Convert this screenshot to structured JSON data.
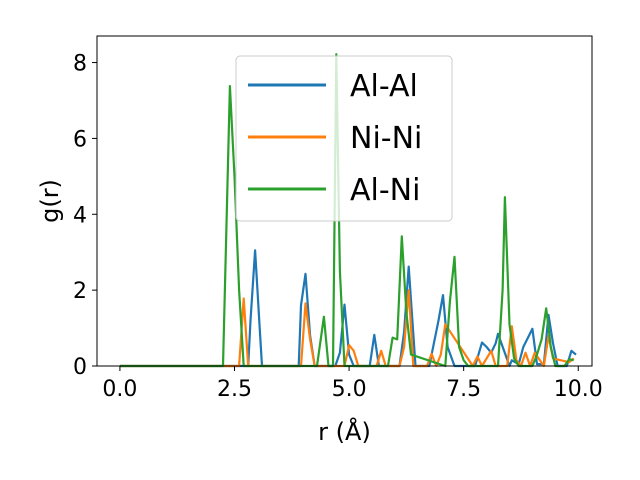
{
  "chart_data": {
    "type": "line",
    "xlabel": "r (Å)",
    "ylabel": "g(r)",
    "xlim": [
      -0.5,
      10.3
    ],
    "ylim": [
      0,
      8.7
    ],
    "xticks": [
      0.0,
      2.5,
      5.0,
      7.5,
      10.0
    ],
    "xtick_labels": [
      "0.0",
      "2.5",
      "5.0",
      "7.5",
      "10.0"
    ],
    "yticks": [
      0,
      2,
      4,
      6,
      8
    ],
    "ytick_labels": [
      "0",
      "2",
      "4",
      "6",
      "8"
    ],
    "grid": false,
    "legend_position": "upper-center",
    "series": [
      {
        "name": "Al-Al",
        "color": "#1f77b4",
        "x": [
          0.0,
          2.8,
          2.85,
          2.95,
          3.05,
          3.1,
          3.9,
          3.95,
          4.05,
          4.15,
          4.25,
          4.7,
          4.8,
          4.9,
          5.0,
          5.1,
          5.45,
          5.55,
          5.65,
          6.1,
          6.2,
          6.3,
          6.45,
          6.75,
          6.85,
          6.95,
          7.05,
          7.15,
          7.3,
          7.75,
          7.9,
          8.0,
          8.1,
          8.2,
          8.25,
          8.5,
          8.55,
          8.7,
          8.8,
          9.0,
          9.1,
          9.25,
          9.35,
          9.45,
          9.55,
          9.75,
          9.85,
          9.95
        ],
        "y": [
          0,
          0,
          1.2,
          3.05,
          1.0,
          0,
          0,
          1.6,
          2.43,
          0.8,
          0,
          0,
          0.35,
          1.62,
          0.3,
          0,
          0,
          0.82,
          0,
          0,
          0.9,
          2.62,
          0,
          0,
          0.6,
          1.2,
          1.87,
          0.5,
          0,
          0,
          0.62,
          0.5,
          0.35,
          0.6,
          0.85,
          0,
          0.15,
          0.05,
          0.5,
          0.98,
          0.05,
          0.05,
          1.35,
          0.6,
          0,
          0,
          0.4,
          0.3
        ]
      },
      {
        "name": "Ni-Ni",
        "color": "#ff7f0e",
        "x": [
          0.0,
          2.6,
          2.7,
          2.8,
          3.95,
          4.05,
          4.15,
          4.25,
          4.9,
          5.0,
          5.1,
          5.2,
          5.6,
          5.7,
          5.8,
          6.1,
          6.2,
          6.3,
          6.4,
          6.7,
          6.8,
          6.9,
          7.0,
          7.1,
          7.7,
          7.8,
          7.9,
          8.0,
          8.1,
          8.2,
          8.45,
          8.55,
          8.65,
          8.75,
          8.85,
          8.95,
          9.05,
          9.25,
          9.35,
          9.45,
          9.8,
          9.9
        ],
        "y": [
          0,
          0,
          1.78,
          0,
          0,
          1.65,
          0.7,
          0,
          0,
          0.55,
          0.4,
          0,
          0,
          0.4,
          0,
          0,
          0.5,
          2.0,
          0,
          0,
          0.32,
          0,
          0.3,
          1.1,
          0,
          0.25,
          0,
          0.2,
          0.4,
          0,
          0,
          1.05,
          0.15,
          0,
          0.35,
          0,
          0.35,
          0,
          0.8,
          0.2,
          0.1,
          0.2
        ]
      },
      {
        "name": "Al-Ni",
        "color": "#2ca02c",
        "x": [
          0.0,
          2.25,
          2.4,
          2.5,
          2.6,
          2.7,
          4.3,
          4.45,
          4.55,
          4.65,
          4.72,
          4.8,
          4.9,
          5.85,
          5.95,
          6.05,
          6.15,
          6.25,
          6.35,
          7.1,
          7.2,
          7.3,
          7.4,
          7.5,
          7.6,
          8.25,
          8.35,
          8.4,
          8.5,
          8.6,
          8.7,
          9.0,
          9.1,
          9.2,
          9.3,
          9.4,
          9.5,
          9.7,
          9.8,
          9.9
        ],
        "y": [
          0,
          0,
          7.38,
          5.0,
          2.0,
          0,
          0,
          1.3,
          0,
          0,
          8.22,
          2.5,
          0,
          0,
          0.75,
          0.7,
          3.42,
          1.4,
          0.3,
          0,
          1.7,
          2.88,
          0.5,
          0.15,
          0,
          0,
          2.0,
          4.45,
          1.1,
          0.2,
          0,
          0,
          0.3,
          0.7,
          1.52,
          0.5,
          0,
          0,
          0.18,
          0.15
        ]
      }
    ]
  }
}
